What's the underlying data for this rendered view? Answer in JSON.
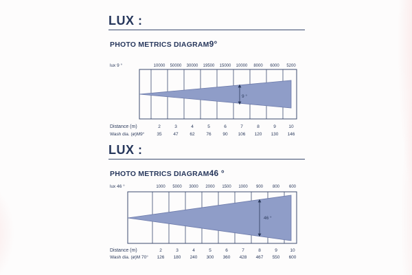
{
  "section1": {
    "heading": "LUX :",
    "title_prefix": "PHOTO METRICS DIAGRAM",
    "title_angle": "9°",
    "lux_label": "lux  9 °",
    "lux_values": [
      "10000",
      "50000",
      "30000",
      "19500",
      "15000",
      "10000",
      "8000",
      "6000",
      "5200"
    ],
    "beam_angle_label": "9 °",
    "distance_label": "Distance (m)",
    "distances": [
      "2",
      "3",
      "4",
      "5",
      "6",
      "7",
      "8",
      "9",
      "10"
    ],
    "wash_label": "Wash dia. (ø)M9°",
    "wash_values": [
      "35",
      "47",
      "62",
      "76",
      "90",
      "106",
      "120",
      "130",
      "146"
    ]
  },
  "section2": {
    "heading": "LUX :",
    "title_prefix": "PHOTO METRICS DIAGRAM",
    "title_angle": "46 °",
    "lux_label": "lux 46 °",
    "lux_values": [
      "1000",
      "5000",
      "3000",
      "2000",
      "1500",
      "1000",
      "900",
      "800",
      "600"
    ],
    "beam_angle_label": "46 °",
    "distance_label": "Distance (m)",
    "distances": [
      "2",
      "3",
      "4",
      "5",
      "6",
      "7",
      "8",
      "9",
      "10"
    ],
    "wash_label": "Wash dia. (ø)M 70°",
    "wash_values": [
      "126",
      "180",
      "240",
      "300",
      "360",
      "428",
      "467",
      "550",
      "600"
    ]
  },
  "colors": {
    "navy": "#27375c",
    "beam": "#8f9dc8",
    "grid": "#3a4a6e"
  }
}
